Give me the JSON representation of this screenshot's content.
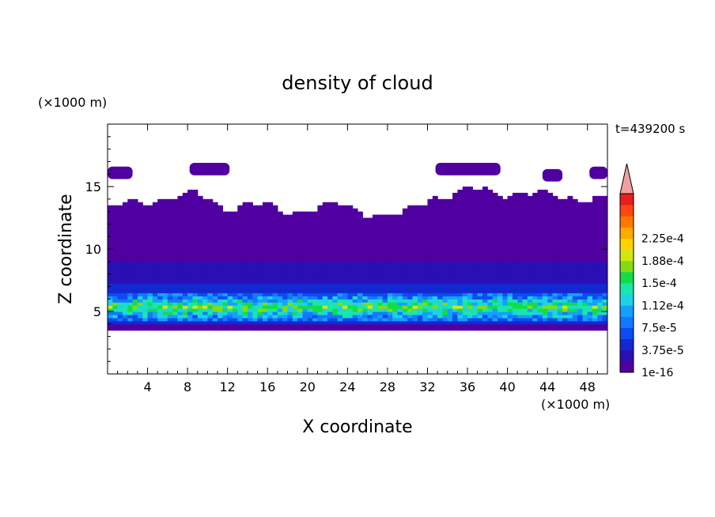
{
  "chart_data": {
    "type": "heatmap",
    "title": "density of cloud",
    "xlabel": "X coordinate",
    "ylabel": "Z coordinate",
    "x_unit": "(×1000 m)",
    "y_unit": "(×1000 m)",
    "time_label": "t=439200 s",
    "xlim": [
      0,
      50
    ],
    "ylim": [
      0,
      20
    ],
    "x_ticks": [
      4,
      8,
      12,
      16,
      20,
      24,
      28,
      32,
      36,
      40,
      44,
      48
    ],
    "y_ticks": [
      5,
      10,
      15
    ],
    "colorbar": {
      "labels": [
        "1e-16",
        "3.75e-5",
        "7.5e-5",
        "1.12e-4",
        "1.5e-4",
        "1.88e-4",
        "2.25e-4"
      ],
      "colors": [
        "#5000a0",
        "#2a10b4",
        "#1428d2",
        "#0a4cf0",
        "#1478ff",
        "#14a0ff",
        "#1ed2e6",
        "#19e6aa",
        "#14dc46",
        "#82dc14",
        "#d2e614",
        "#ffd200",
        "#ffaa00",
        "#ff7800",
        "#ff4614",
        "#e61e1e"
      ],
      "extend_color": "#f0a0a0"
    },
    "structure": {
      "cloud_top_km": [
        13.3,
        13.6,
        14.2,
        14.3,
        13.5,
        13.5,
        13.0,
        13.3,
        13.4,
        13.0,
        12.5,
        14.2,
        14.6,
        14.6,
        14.6,
        14.2,
        14.2,
        14.0
      ],
      "cloud_base_km": 3.5,
      "core_layer_km": [
        4.5,
        6.2
      ],
      "peak_density": 0.000188
    }
  }
}
